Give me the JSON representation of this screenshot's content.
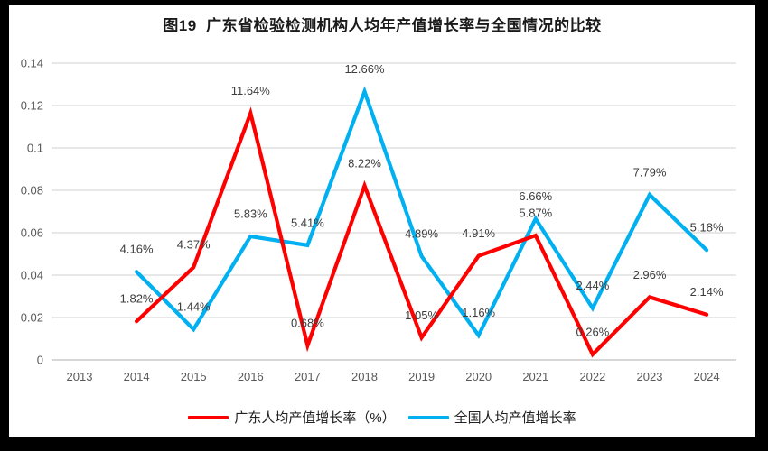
{
  "chart_data": {
    "type": "line",
    "title": "图19  广东省检验检测机构人均年产值增长率与全国情况的比较",
    "x_labels": [
      "2013",
      "2014",
      "2015",
      "2016",
      "2017",
      "2018",
      "2019",
      "2020",
      "2021",
      "2022",
      "2023",
      "2024"
    ],
    "ylim": [
      0,
      0.14
    ],
    "ytick_labels": [
      "0",
      "0.02",
      "0.04",
      "0.06",
      "0.08",
      "0.1",
      "0.12",
      "0.14"
    ],
    "grid": true,
    "legend_position": "bottom",
    "series": [
      {
        "name": "广东人均产值增长率（%）",
        "color": "#FF0000",
        "first_x": "2014",
        "values": [
          0.0182,
          0.0437,
          0.1164,
          0.0068,
          0.0822,
          0.0105,
          0.0491,
          0.0587,
          0.0026,
          0.0296,
          0.0214
        ],
        "data_labels": [
          "1.82%",
          "4.37%",
          "11.64%",
          "0.68%",
          "8.22%",
          "1.05%",
          "4.91%",
          "5.87%",
          "0.26%",
          "2.96%",
          "2.14%"
        ]
      },
      {
        "name": "全国人均产值增长率",
        "color": "#00B0F0",
        "first_x": "2014",
        "values": [
          0.0416,
          0.0144,
          0.0583,
          0.0541,
          0.1266,
          0.0489,
          0.0116,
          0.0666,
          0.0244,
          0.0779,
          0.0518
        ],
        "data_labels": [
          "4.16%",
          "1.44%",
          "5.83%",
          "5.41%",
          "12.66%",
          "4.89%",
          "1.16%",
          "6.66%",
          "2.44%",
          "7.79%",
          "5.18%"
        ]
      }
    ],
    "colors": {
      "grid": "#d9d9d9",
      "axis": "#bfbfbf",
      "tick_text": "#595959",
      "label_text": "#3d3d3d",
      "frame": "#000000",
      "background": "#ffffff"
    }
  }
}
